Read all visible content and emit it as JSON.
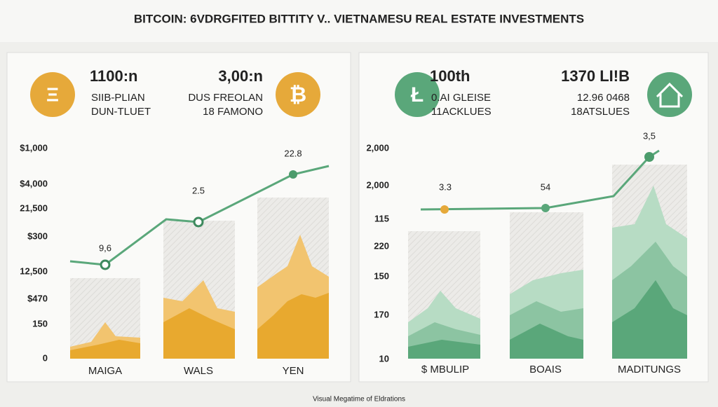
{
  "header": {
    "title": "BITCOIN: 6VDRGFITED BITTITY V.. VIETNAMESU REAL ESTATE INVESTMENTS"
  },
  "panels": [
    {
      "stats": [
        {
          "value": "1100:n",
          "lines": [
            "SIIB-PLIAN",
            "DUN-TLUET"
          ]
        },
        {
          "value": "3,00:n",
          "lines": [
            "DUS FREOLAN",
            "18 FAMONO"
          ]
        }
      ],
      "y_labels": [
        "$1,000",
        "$4,000",
        "21,500",
        "$300",
        "12,500",
        "$470",
        "150",
        "0"
      ],
      "point_labels": [
        "9,6",
        "2.5",
        "22.8"
      ],
      "categories": [
        "MAIGA",
        "WALS",
        "YEN"
      ]
    },
    {
      "stats": [
        {
          "value": "100th",
          "lines": [
            "0.AI GLEISE",
            "11ACKLUES"
          ]
        },
        {
          "value": "1370 LI!B",
          "lines": [
            "12.96 0468",
            "18ATSLUES"
          ]
        }
      ],
      "y_labels": [
        "2,000",
        "2,000",
        "115",
        "220",
        "150",
        "170",
        "10"
      ],
      "point_labels": [
        "3.3",
        "54",
        "3,5"
      ],
      "categories": [
        "$ MBULIP",
        "BOAIS",
        "MADITUNGS"
      ]
    }
  ],
  "footer": {
    "text": "Visual Megatime of Eldrations"
  }
}
